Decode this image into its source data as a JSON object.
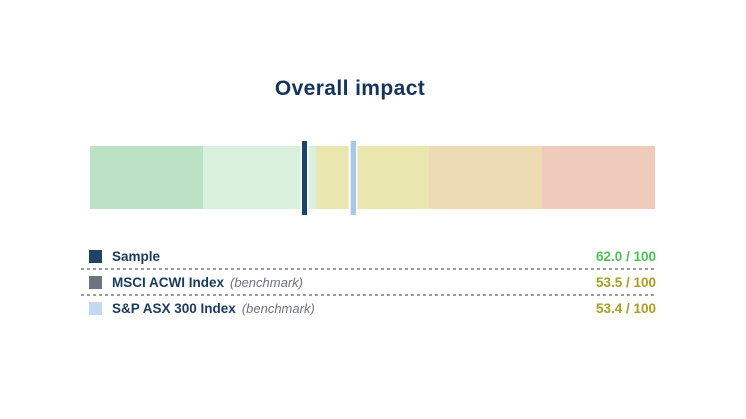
{
  "title": "Overall impact",
  "colors": {
    "title_text": "#15345b",
    "label_text": "#1b3a5f",
    "note_text": "#6b7280",
    "divider": "#9b9b9b",
    "background": "#ffffff"
  },
  "chart_data": {
    "type": "bar",
    "subtype": "horizontal-bullet-gauge",
    "title": "Overall impact",
    "scale": {
      "min": 0,
      "max": 100,
      "orientation": "higher-values-on-left"
    },
    "grid": false,
    "legend_position": "below",
    "segments": [
      {
        "name": "zone-1",
        "span_pct": 20,
        "color": "#bce2c6"
      },
      {
        "name": "zone-2",
        "span_pct": 20,
        "color": "#d9f1dc"
      },
      {
        "name": "zone-3",
        "span_pct": 20,
        "color": "#e9e7af"
      },
      {
        "name": "zone-4",
        "span_pct": 20,
        "color": "#ecdbb3"
      },
      {
        "name": "zone-5",
        "span_pct": 20,
        "color": "#efcbbb"
      }
    ],
    "series": [
      {
        "id": "sample",
        "name": "Sample",
        "value": 62.0,
        "display": "62.0 / 100",
        "marker_color": "#1d4366",
        "z": 3
      },
      {
        "id": "msci-acwi",
        "name": "MSCI ACWI Index (benchmark)",
        "value": 53.5,
        "display": "53.5 / 100",
        "marker_color": "#6b7480",
        "z": 1
      },
      {
        "id": "sp-asx-300",
        "name": "S&P ASX 300 Index (benchmark)",
        "value": 53.4,
        "display": "53.4 / 100",
        "marker_color": "#a9c7e8",
        "z": 2
      }
    ]
  },
  "legend": {
    "rows": [
      {
        "label": "Sample",
        "note": "",
        "value": "62.0 / 100",
        "value_color": "#4cc253",
        "swatch_color": "#1d4366"
      },
      {
        "label": "MSCI ACWI Index",
        "note": "(benchmark)",
        "value": "53.5 / 100",
        "value_color": "#a89e1f",
        "swatch_color": "#6b7480"
      },
      {
        "label": "S&P ASX 300 Index",
        "note": "(benchmark)",
        "value": "53.4 / 100",
        "value_color": "#a89e1f",
        "swatch_color": "#c3d9f1"
      }
    ]
  }
}
